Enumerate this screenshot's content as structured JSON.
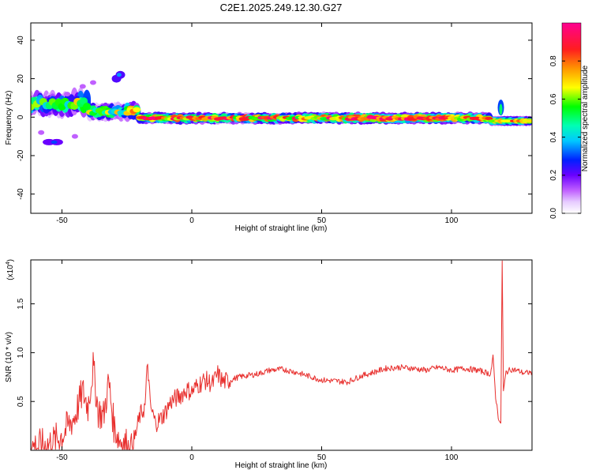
{
  "figure_title": "C2E1.2025.249.12.30.G27",
  "colors": {
    "snr_line": "#e8302e",
    "axis": "#000000",
    "background": "#ffffff"
  },
  "chart_data": [
    {
      "type": "heatmap",
      "xlabel": "Height of straight line (km)",
      "ylabel": "Frequency (Hz)",
      "xlim": [
        -62,
        131
      ],
      "ylim": [
        -50,
        49
      ],
      "x_ticks": [
        "-50",
        "0",
        "50",
        "100"
      ],
      "y_ticks": [
        "40",
        "20",
        "0",
        "-20",
        "-40"
      ],
      "x_tick_values": [
        -50,
        0,
        50,
        100
      ],
      "y_tick_values": [
        40,
        20,
        0,
        -20,
        -40
      ],
      "colorbar": {
        "label": "Normalized spectral amplitude",
        "range": [
          0,
          1
        ],
        "ticks": [
          "0.0",
          "0.2",
          "0.4",
          "0.6",
          "0.8"
        ],
        "tick_values": [
          0.0,
          0.2,
          0.4,
          0.6,
          0.8
        ],
        "colormap": "rainbow (white - magenta - blue - cyan - green - yellow - red - pink)"
      },
      "features": [
        {
          "x_range": [
            -62,
            131
          ],
          "frequency": 0,
          "note": "main band near 0 Hz, high amplitude 0-100 km"
        },
        {
          "x_range": [
            -30,
            -25
          ],
          "frequency": 23,
          "note": "isolated patch"
        },
        {
          "x_range": [
            -57,
            -49
          ],
          "frequency": -13,
          "note": "isolated patch"
        },
        {
          "x_range": [
            117,
            121
          ],
          "frequency": 5,
          "note": "spike near 119 km"
        }
      ]
    },
    {
      "type": "line",
      "xlabel": "Height of straight line (km)",
      "ylabel": "SNR (10 * v/v)",
      "y_multiplier": "(x10",
      "y_multiplier_exp": "4",
      "y_multiplier_close": ")",
      "xlim": [
        -62,
        131
      ],
      "ylim": [
        0.0,
        1.95
      ],
      "x_ticks": [
        "-50",
        "0",
        "50",
        "100"
      ],
      "y_ticks": [
        "1.5",
        "1.0",
        "0.5"
      ],
      "x_tick_values": [
        -50,
        0,
        50,
        100
      ],
      "y_tick_values": [
        1.5,
        1.0,
        0.5
      ],
      "series": [
        {
          "x": [
            -62,
            -55,
            -50,
            -45,
            -42,
            -40,
            -38,
            -36,
            -34,
            -32,
            -30,
            -28,
            -26,
            -24,
            -22,
            -20,
            -18,
            -17,
            -16,
            -14,
            -12,
            -10,
            -8,
            -5,
            -2,
            0,
            2,
            5,
            8,
            10,
            12,
            15,
            18,
            20,
            25,
            30,
            35,
            40,
            45,
            50,
            55,
            60,
            65,
            70,
            75,
            80,
            85,
            90,
            95,
            100,
            105,
            110,
            113,
            115,
            116,
            117,
            118,
            119,
            119.5,
            120,
            121,
            123,
            125,
            128,
            131
          ],
          "y": [
            0.03,
            0.06,
            0.15,
            0.35,
            0.6,
            0.45,
            0.85,
            0.4,
            0.35,
            0.7,
            0.25,
            0.12,
            0.07,
            0.05,
            0.12,
            0.35,
            0.45,
            0.9,
            0.45,
            0.28,
            0.32,
            0.4,
            0.5,
            0.55,
            0.62,
            0.6,
            0.66,
            0.72,
            0.68,
            0.78,
            0.7,
            0.72,
            0.75,
            0.76,
            0.78,
            0.82,
            0.83,
            0.8,
            0.76,
            0.72,
            0.71,
            0.7,
            0.76,
            0.8,
            0.84,
            0.85,
            0.84,
            0.82,
            0.85,
            0.82,
            0.84,
            0.82,
            0.8,
            0.78,
            0.95,
            0.55,
            0.35,
            0.25,
            1.95,
            0.6,
            0.8,
            0.83,
            0.82,
            0.79,
            0.8
          ]
        }
      ]
    }
  ]
}
